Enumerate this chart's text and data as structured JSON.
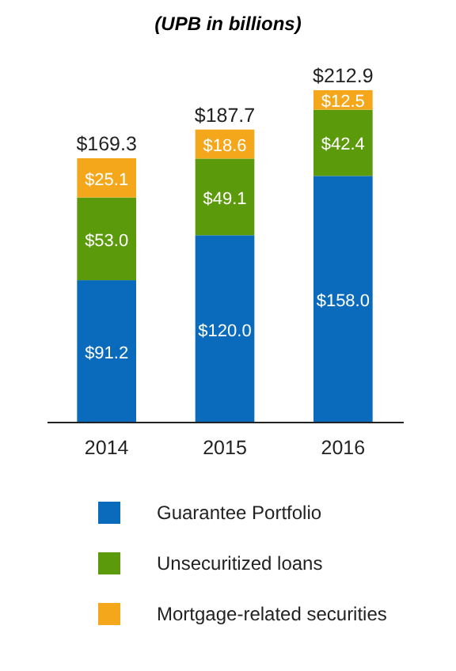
{
  "chart_data": {
    "type": "bar",
    "title": "(UPB in billions)",
    "categories": [
      "2014",
      "2015",
      "2016"
    ],
    "stacked": true,
    "legend": "bottom",
    "series": [
      {
        "name": "Guarantee Portfolio",
        "color": "#0a6bbd",
        "values": [
          91.2,
          120.0,
          158.0
        ],
        "value_labels": [
          "$91.2",
          "$120.0",
          "$158.0"
        ]
      },
      {
        "name": "Unsecuritized loans",
        "color": "#5b9a0b",
        "values": [
          53.0,
          49.1,
          42.4
        ],
        "value_labels": [
          "$53.0",
          "$49.1",
          "$42.4"
        ]
      },
      {
        "name": "Mortgage-related securities",
        "color": "#f5a71c",
        "values": [
          25.1,
          18.6,
          12.5
        ],
        "value_labels": [
          "$25.1",
          "$18.6",
          "$12.5"
        ]
      }
    ],
    "totals": [
      "$169.3",
      "$187.7",
      "$212.9"
    ]
  }
}
